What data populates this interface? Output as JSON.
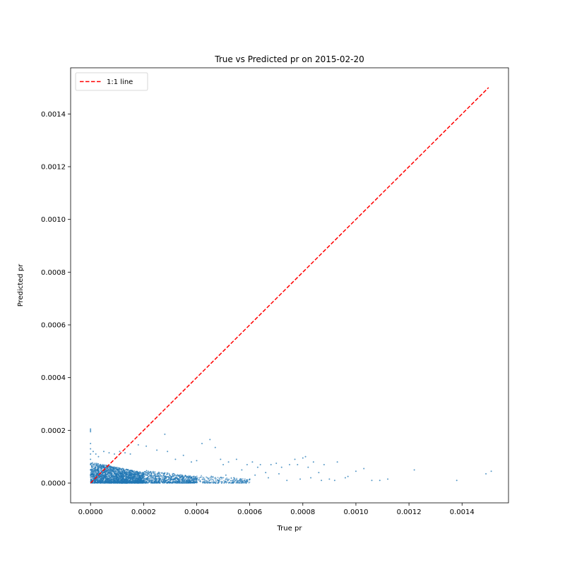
{
  "chart_data": {
    "type": "scatter",
    "title": "True vs Predicted pr on 2015-02-20",
    "xlabel": "True pr",
    "ylabel": "Predicted pr",
    "xlim": [
      -7.5e-05,
      0.001575
    ],
    "ylim": [
      -7.5e-05,
      0.001575
    ],
    "xticks": [
      0.0,
      0.0002,
      0.0004,
      0.0006,
      0.0008,
      0.001,
      0.0012,
      0.0014
    ],
    "xtick_labels": [
      "0.0000",
      "0.0002",
      "0.0004",
      "0.0006",
      "0.0008",
      "0.0010",
      "0.0012",
      "0.0014"
    ],
    "yticks": [
      0.0,
      0.0002,
      0.0004,
      0.0006,
      0.0008,
      0.001,
      0.0012,
      0.0014
    ],
    "ytick_labels": [
      "0.0000",
      "0.0002",
      "0.0004",
      "0.0006",
      "0.0008",
      "0.0010",
      "0.0012",
      "0.0014"
    ],
    "grid": false,
    "legend_placement": "top-left",
    "colors": {
      "points": "#1f77b4",
      "reference_line": "#ff0000"
    },
    "series": [
      {
        "kind": "points",
        "points": [
          [
            0.0,
            0.0002
          ],
          [
            0.0,
            0.000205
          ],
          [
            0.0,
            0.000195
          ],
          [
            0.0,
            0.00015
          ],
          [
            0.0,
            0.00013
          ],
          [
            0.0,
            0.00011
          ],
          [
            0.0,
            9e-05
          ],
          [
            0.0,
            7e-05
          ],
          [
            0.0,
            5e-05
          ],
          [
            0.0,
            3e-05
          ],
          [
            1e-05,
            0.00012
          ],
          [
            2e-05,
            0.00011
          ],
          [
            3e-05,
            0.0001
          ],
          [
            5e-05,
            0.00012
          ],
          [
            7e-05,
            0.000115
          ],
          [
            9e-05,
            0.00011
          ],
          [
            0.00011,
            0.00012
          ],
          [
            0.00013,
            0.000115
          ],
          [
            0.00015,
            0.00011
          ],
          [
            0.00018,
            0.000145
          ],
          [
            0.00021,
            0.00014
          ],
          [
            0.00025,
            0.000125
          ],
          [
            0.00028,
            0.000185
          ],
          [
            0.00029,
            0.00012
          ],
          [
            0.00032,
            9e-05
          ],
          [
            0.00035,
            0.000105
          ],
          [
            0.00038,
            8e-05
          ],
          [
            0.0004,
            8.5e-05
          ],
          [
            0.00042,
            0.00015
          ],
          [
            0.00045,
            0.000165
          ],
          [
            0.00047,
            0.000135
          ],
          [
            0.00049,
            9e-05
          ],
          [
            0.0005,
            7e-05
          ],
          [
            0.00052,
            8e-05
          ],
          [
            0.00055,
            9e-05
          ],
          [
            0.00057,
            5e-05
          ],
          [
            0.00059,
            7e-05
          ],
          [
            0.00061,
            8e-05
          ],
          [
            0.00063,
            6e-05
          ],
          [
            0.00064,
            7e-05
          ],
          [
            0.00066,
            4e-05
          ],
          [
            0.00068,
            7e-05
          ],
          [
            0.0007,
            7.5e-05
          ],
          [
            0.00072,
            6e-05
          ],
          [
            0.00075,
            7e-05
          ],
          [
            0.00077,
            9e-05
          ],
          [
            0.00078,
            7e-05
          ],
          [
            0.0008,
            9.5e-05
          ],
          [
            0.00081,
            0.0001
          ],
          [
            0.00082,
            6e-05
          ],
          [
            0.00084,
            8e-05
          ],
          [
            0.00086,
            4e-05
          ],
          [
            0.00088,
            7e-05
          ],
          [
            0.0009,
            1.5e-05
          ],
          [
            0.00093,
            8e-05
          ],
          [
            0.00097,
            2.5e-05
          ],
          [
            0.001,
            4.5e-05
          ],
          [
            0.00103,
            5.5e-05
          ],
          [
            0.00106,
            1e-05
          ],
          [
            0.00109,
            1e-05
          ],
          [
            0.00112,
            1.5e-05
          ],
          [
            0.00122,
            5e-05
          ],
          [
            0.00138,
            1e-05
          ],
          [
            0.00149,
            3.5e-05
          ],
          [
            0.00151,
            4.5e-05
          ],
          [
            0.00054,
            2e-05
          ],
          [
            0.00058,
            1e-05
          ],
          [
            0.0006,
            1.5e-05
          ],
          [
            0.00062,
            3e-05
          ],
          [
            0.00067,
            2e-05
          ],
          [
            0.00071,
            3.5e-05
          ],
          [
            0.00074,
            1e-05
          ],
          [
            0.00079,
            1.5e-05
          ],
          [
            0.00083,
            2e-05
          ],
          [
            0.00087,
            1e-05
          ],
          [
            0.00092,
            1e-05
          ],
          [
            0.00096,
            2e-05
          ],
          [
            0.00044,
            2e-05
          ],
          [
            0.00048,
            1e-05
          ],
          [
            0.00051,
            3e-05
          ]
        ]
      },
      {
        "kind": "dense-cloud",
        "clusters": [
          {
            "x_range": [
              0.0,
              0.0002
            ],
            "y_range": [
              0.0,
              8e-05
            ],
            "count": 2600
          },
          {
            "x_range": [
              0.0002,
              0.0004
            ],
            "y_range": [
              0.0,
              5e-05
            ],
            "count": 900
          },
          {
            "x_range": [
              0.0004,
              0.0006
            ],
            "y_range": [
              0.0,
              3e-05
            ],
            "count": 250
          }
        ]
      },
      {
        "name": "1:1 line",
        "kind": "line",
        "style": "dashed",
        "x": [
          0.0,
          0.0015
        ],
        "y": [
          0.0,
          0.0015
        ]
      }
    ]
  }
}
